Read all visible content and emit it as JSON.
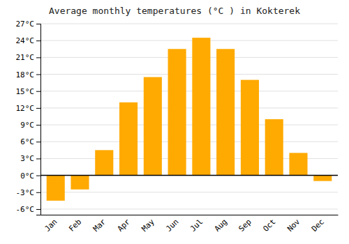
{
  "chart_data": {
    "type": "bar",
    "title": "Average monthly temperatures (°C ) in Kokterek",
    "categories": [
      "Jan",
      "Feb",
      "Mar",
      "Apr",
      "May",
      "Jun",
      "Jul",
      "Aug",
      "Sep",
      "Oct",
      "Nov",
      "Dec"
    ],
    "values": [
      -4.5,
      -2.5,
      4.5,
      13.0,
      17.5,
      22.5,
      24.5,
      22.5,
      17.0,
      10.0,
      4.0,
      -1.0
    ],
    "color": "#FFAA00",
    "ylim": [
      -7,
      27
    ],
    "yticks": [
      {
        "value": -6,
        "label": "-6°C"
      },
      {
        "value": -3,
        "label": "-3°C"
      },
      {
        "value": 0,
        "label": "0°C"
      },
      {
        "value": 3,
        "label": "3°C"
      },
      {
        "value": 6,
        "label": "6°C"
      },
      {
        "value": 9,
        "label": "9°C"
      },
      {
        "value": 12,
        "label": "12°C"
      },
      {
        "value": 15,
        "label": "15°C"
      },
      {
        "value": 18,
        "label": "18°C"
      },
      {
        "value": 21,
        "label": "21°C"
      },
      {
        "value": 24,
        "label": "24°C"
      },
      {
        "value": 27,
        "label": "27°C"
      }
    ],
    "grid": true
  }
}
